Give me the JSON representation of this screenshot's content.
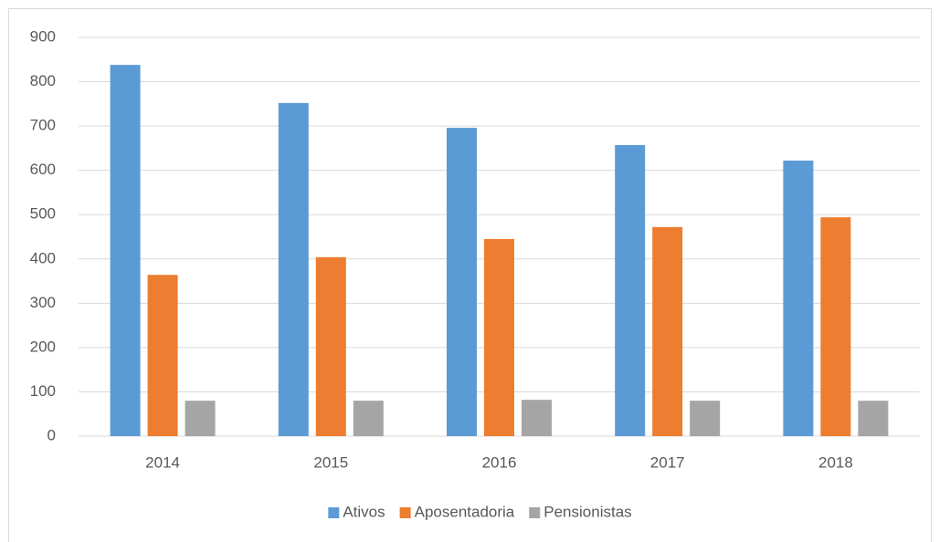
{
  "chart_data": {
    "type": "bar",
    "categories": [
      "2014",
      "2015",
      "2016",
      "2017",
      "2018"
    ],
    "series": [
      {
        "name": "Ativos",
        "color": "#5b9bd5",
        "values": [
          838,
          752,
          696,
          657,
          622
        ]
      },
      {
        "name": "Aposentadoria",
        "color": "#ed7d31",
        "values": [
          364,
          404,
          445,
          472,
          494
        ]
      },
      {
        "name": "Pensionistas",
        "color": "#a5a5a5",
        "values": [
          80,
          80,
          82,
          80,
          80
        ]
      }
    ],
    "ylim": [
      0,
      900
    ],
    "yticks": [
      0,
      100,
      200,
      300,
      400,
      500,
      600,
      700,
      800,
      900
    ],
    "grid": true,
    "legend": "bottom"
  }
}
